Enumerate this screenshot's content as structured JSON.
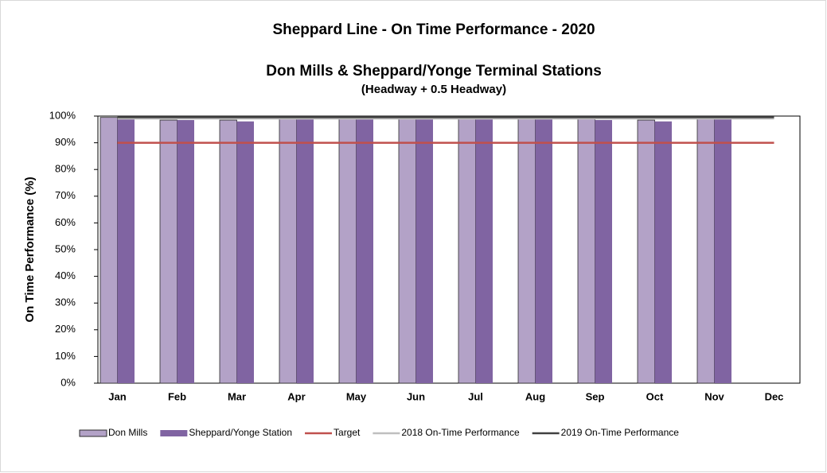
{
  "chart_data": {
    "type": "bar",
    "title": "Sheppard Line - On Time Performance - 2020",
    "subtitle": "Don Mills & Sheppard/Yonge Terminal Stations",
    "subtitle2": "(Headway + 0.5 Headway)",
    "y_label": "On Time Performance (%)",
    "categories": [
      "Jan",
      "Feb",
      "Mar",
      "Apr",
      "May",
      "Jun",
      "Jul",
      "Aug",
      "Sep",
      "Oct",
      "Nov",
      "Dec"
    ],
    "series": [
      {
        "name": "Don Mills",
        "type": "bar",
        "color": "#b3a2c7",
        "values": [
          99.5,
          98.5,
          98.5,
          99,
          99,
          99.5,
          99.5,
          99,
          99,
          98.5,
          99,
          null
        ]
      },
      {
        "name": "Sheppard/Yonge Station",
        "type": "bar",
        "color": "#8064a2",
        "values": [
          99,
          98.5,
          98,
          99,
          99.5,
          99.5,
          99.5,
          99,
          98.5,
          98,
          99,
          null
        ]
      },
      {
        "name": "Target",
        "type": "line",
        "color": "#c0504d",
        "values": [
          90,
          90,
          90,
          90,
          90,
          90,
          90,
          90,
          90,
          90,
          90,
          90
        ]
      },
      {
        "name": "2018 On-Time Performance",
        "type": "line",
        "color": "#bfbfbf",
        "values": [
          99,
          99,
          99,
          99,
          99,
          99,
          99,
          99,
          99,
          99,
          99,
          99
        ]
      },
      {
        "name": "2019 On-Time Performance",
        "type": "line",
        "color": "#404040",
        "values": [
          99.5,
          99.5,
          99.5,
          99.5,
          99.5,
          99.5,
          99.5,
          99.5,
          99.5,
          99.5,
          99.5,
          99.5
        ]
      }
    ],
    "ylim": [
      0,
      100
    ],
    "yticks": [
      {
        "value": 0,
        "label": "0%"
      },
      {
        "value": 10,
        "label": "10%"
      },
      {
        "value": 20,
        "label": "20%"
      },
      {
        "value": 30,
        "label": "30%"
      },
      {
        "value": 40,
        "label": "40%"
      },
      {
        "value": 50,
        "label": "50%"
      },
      {
        "value": 60,
        "label": "60%"
      },
      {
        "value": 70,
        "label": "70%"
      },
      {
        "value": 80,
        "label": "80%"
      },
      {
        "value": 90,
        "label": "90%"
      },
      {
        "value": 100,
        "label": "100%"
      }
    ],
    "legend": "bottom"
  }
}
